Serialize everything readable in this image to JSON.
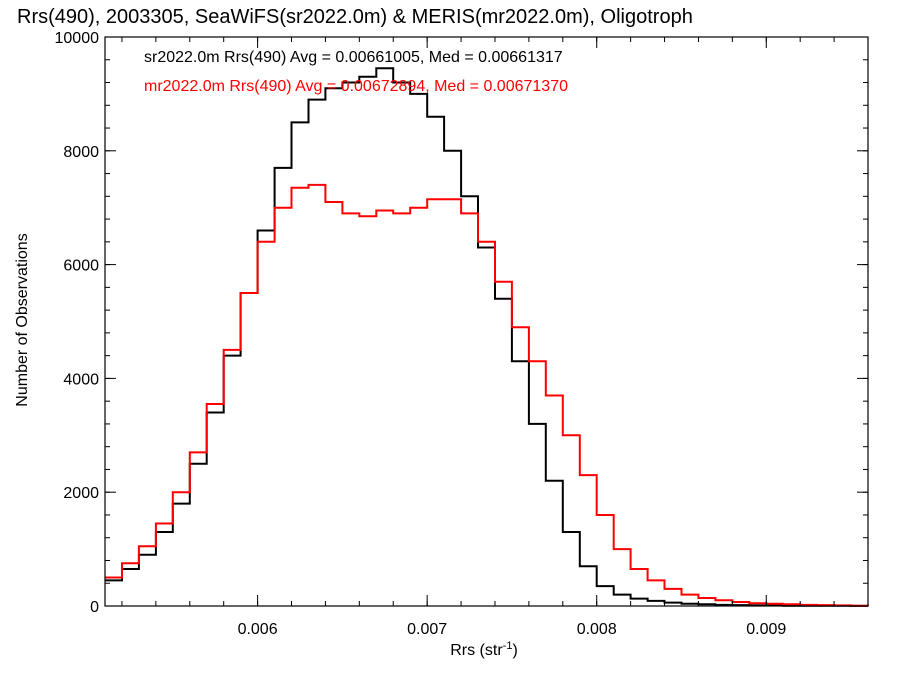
{
  "chart_data": {
    "type": "line",
    "title": "Rrs(490), 2003305, SeaWiFS(sr2022.0m) & MERIS(mr2022.0m), Oligotroph",
    "xlabel": "Rrs (str",
    "xlabel_sup": "-1",
    "xlabel_end": ")",
    "ylabel": "Number of Observations",
    "xlim": [
      0.0051,
      0.0096
    ],
    "ylim": [
      0,
      10000
    ],
    "x_ticks": [
      0.006,
      0.007,
      0.008,
      0.009
    ],
    "x_tick_labels": [
      "0.006",
      "0.007",
      "0.008",
      "0.009"
    ],
    "y_ticks": [
      0,
      2000,
      4000,
      6000,
      8000,
      10000
    ],
    "y_tick_labels": [
      "0",
      "2000",
      "4000",
      "6000",
      "8000",
      "10000"
    ],
    "x_minor_step": 0.0002,
    "y_minor_step": 400,
    "grid": false,
    "legend_position": "top-left",
    "legend": [
      "sr2022.0m Rrs(490) Avg = 0.00661005, Med = 0.00661317",
      "mr2022.0m Rrs(490) Avg = 0.00672894, Med = 0.00671370"
    ],
    "series": [
      {
        "color": "#000000",
        "x": [
          0.0051,
          0.0052,
          0.0053,
          0.0054,
          0.0055,
          0.0056,
          0.0057,
          0.0058,
          0.0059,
          0.006,
          0.0061,
          0.0062,
          0.0063,
          0.0064,
          0.0065,
          0.0066,
          0.0067,
          0.0068,
          0.0069,
          0.007,
          0.0071,
          0.0072,
          0.0073,
          0.0074,
          0.0075,
          0.0076,
          0.0077,
          0.0078,
          0.0079,
          0.008,
          0.0081,
          0.0082,
          0.0083,
          0.0084,
          0.0085,
          0.0086,
          0.0087,
          0.0088,
          0.0089,
          0.009,
          0.0091,
          0.0092,
          0.0093,
          0.0094,
          0.0095,
          0.0096
        ],
        "values": [
          450,
          650,
          900,
          1300,
          1800,
          2500,
          3400,
          4400,
          5500,
          6600,
          7700,
          8500,
          8900,
          9100,
          9200,
          9300,
          9450,
          9200,
          9000,
          8600,
          8000,
          7200,
          6300,
          5400,
          4300,
          3200,
          2200,
          1300,
          700,
          350,
          200,
          130,
          90,
          60,
          40,
          30,
          20,
          15,
          10,
          8,
          6,
          5,
          4,
          3,
          2,
          2
        ]
      },
      {
        "color": "#ff0000",
        "x": [
          0.0051,
          0.0052,
          0.0053,
          0.0054,
          0.0055,
          0.0056,
          0.0057,
          0.0058,
          0.0059,
          0.006,
          0.0061,
          0.0062,
          0.0063,
          0.0064,
          0.0065,
          0.0066,
          0.0067,
          0.0068,
          0.0069,
          0.007,
          0.0071,
          0.0072,
          0.0073,
          0.0074,
          0.0075,
          0.0076,
          0.0077,
          0.0078,
          0.0079,
          0.008,
          0.0081,
          0.0082,
          0.0083,
          0.0084,
          0.0085,
          0.0086,
          0.0087,
          0.0088,
          0.0089,
          0.009,
          0.0091,
          0.0092,
          0.0093,
          0.0094,
          0.0095,
          0.0096
        ],
        "values": [
          500,
          750,
          1050,
          1450,
          2000,
          2700,
          3550,
          4500,
          5500,
          6400,
          7000,
          7350,
          7400,
          7100,
          6900,
          6850,
          6950,
          6900,
          7000,
          7150,
          7150,
          6900,
          6400,
          5700,
          4900,
          4300,
          3700,
          3000,
          2300,
          1600,
          1000,
          650,
          450,
          300,
          200,
          140,
          100,
          70,
          50,
          40,
          30,
          20,
          15,
          10,
          5,
          3
        ]
      }
    ]
  }
}
